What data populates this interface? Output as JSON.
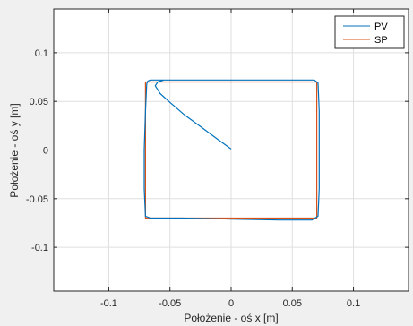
{
  "chart_data": {
    "type": "line",
    "xlabel": "Położenie - oś x [m]",
    "ylabel": "Położenie - oś y [m]",
    "xlim": [
      -0.145,
      0.145
    ],
    "ylim": [
      -0.145,
      0.145
    ],
    "xticks": [
      -0.1,
      -0.05,
      0,
      0.05,
      0.1
    ],
    "xtick_labels": [
      "-0.1",
      "-0.05",
      "0",
      "0.05",
      "0.1"
    ],
    "yticks": [
      -0.1,
      -0.05,
      0,
      0.05,
      0.1
    ],
    "ytick_labels": [
      "-0.1",
      "-0.05",
      "0",
      "0.05",
      "0.1"
    ],
    "grid": true,
    "legend_position": "top-right",
    "series": [
      {
        "name": "PV",
        "color": "#0072bd",
        "x": [
          0.0,
          -0.012,
          -0.025,
          -0.038,
          -0.05,
          -0.058,
          -0.062,
          -0.06,
          -0.055,
          -0.04,
          0.0,
          0.04,
          0.068,
          0.071,
          0.072,
          0.072,
          0.072,
          0.071,
          0.066,
          0.04,
          0.0,
          -0.04,
          -0.066,
          -0.07,
          -0.071,
          -0.071,
          -0.07,
          -0.069,
          -0.068,
          -0.066,
          -0.06,
          -0.05
        ],
        "y": [
          0.001,
          0.012,
          0.024,
          0.036,
          0.049,
          0.058,
          0.066,
          0.07,
          0.072,
          0.072,
          0.072,
          0.072,
          0.072,
          0.069,
          0.04,
          0.0,
          -0.04,
          -0.068,
          -0.072,
          -0.072,
          -0.071,
          -0.07,
          -0.07,
          -0.068,
          -0.04,
          0.0,
          0.04,
          0.068,
          0.071,
          0.072,
          0.072,
          0.072
        ]
      },
      {
        "name": "SP",
        "color": "#d95319",
        "x": [
          -0.07,
          0.07,
          0.07,
          -0.07,
          -0.07
        ],
        "y": [
          0.07,
          0.07,
          -0.07,
          -0.07,
          0.07
        ]
      }
    ]
  }
}
